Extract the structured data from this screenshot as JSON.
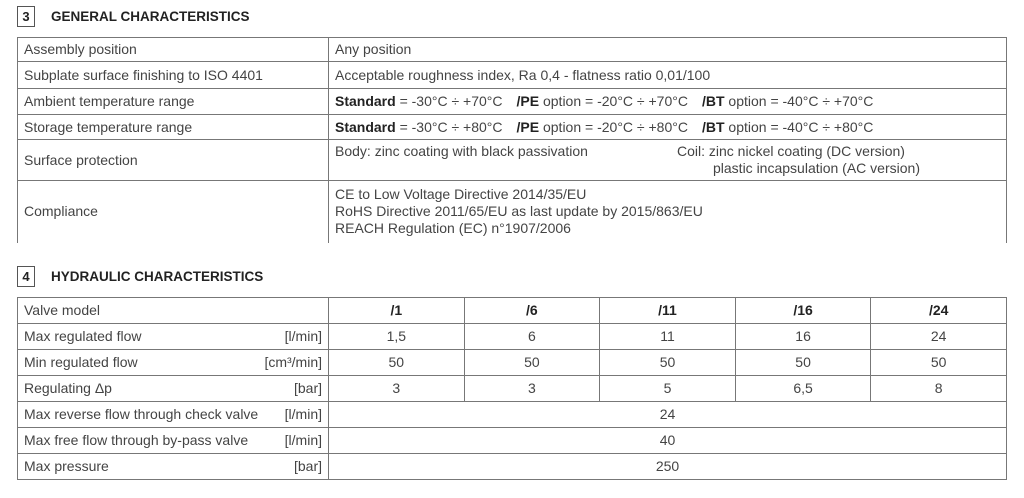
{
  "section3": {
    "number": "3",
    "title": "GENERAL CHARACTERISTICS",
    "rows": [
      {
        "label": "Assembly position",
        "value": "Any position"
      },
      {
        "label": "Subplate surface finishing to ISO 4401",
        "value": "Acceptable roughness index, Ra 0,4 - flatness ratio 0,01/100"
      },
      {
        "label": "Ambient temperature range",
        "std_label": "Standard",
        "std": " = -30°C ÷ +70°C",
        "pe_label": "/PE",
        "pe": " option = -20°C ÷ +70°C",
        "bt_label": "/BT",
        "bt": " option = -40°C ÷ +70°C"
      },
      {
        "label": "Storage temperature range",
        "std_label": "Standard",
        "std": " = -30°C ÷ +80°C",
        "pe_label": "/PE",
        "pe": " option = -20°C ÷ +80°C",
        "bt_label": "/BT",
        "bt": " option = -40°C ÷ +80°C"
      },
      {
        "label": "Surface protection",
        "body": "Body: zinc coating with black passivation",
        "coil1": "Coil: zinc nickel coating (DC version)",
        "coil2": "plastic incapsulation (AC version)"
      },
      {
        "label": "Compliance",
        "lines": [
          "CE to Low Voltage Directive 2014/35/EU",
          "RoHS Directive 2011/65/EU as last update by 2015/863/EU",
          "REACH Regulation (EC) n°1907/2006"
        ]
      }
    ]
  },
  "section4": {
    "number": "4",
    "title": "HYDRAULIC CHARACTERISTICS",
    "header": {
      "label": "Valve model",
      "models": [
        "/1",
        "/6",
        "/11",
        "/16",
        "/24"
      ]
    },
    "rows": [
      {
        "label": "Max regulated flow",
        "unit": "[l/min]",
        "values": [
          "1,5",
          "6",
          "11",
          "16",
          "24"
        ]
      },
      {
        "label": "Min regulated flow",
        "unit": "[cm³/min]",
        "values": [
          "50",
          "50",
          "50",
          "50",
          "50"
        ]
      },
      {
        "label": "Regulating Δp",
        "unit": "[bar]",
        "values": [
          "3",
          "3",
          "5",
          "6,5",
          "8"
        ]
      },
      {
        "label": "Max reverse flow through check valve",
        "unit": "[l/min]",
        "value": "24"
      },
      {
        "label": "Max free flow through by-pass valve",
        "unit": "[l/min]",
        "value": "40"
      },
      {
        "label": "Max pressure",
        "unit": "[bar]",
        "value": "250"
      }
    ]
  }
}
